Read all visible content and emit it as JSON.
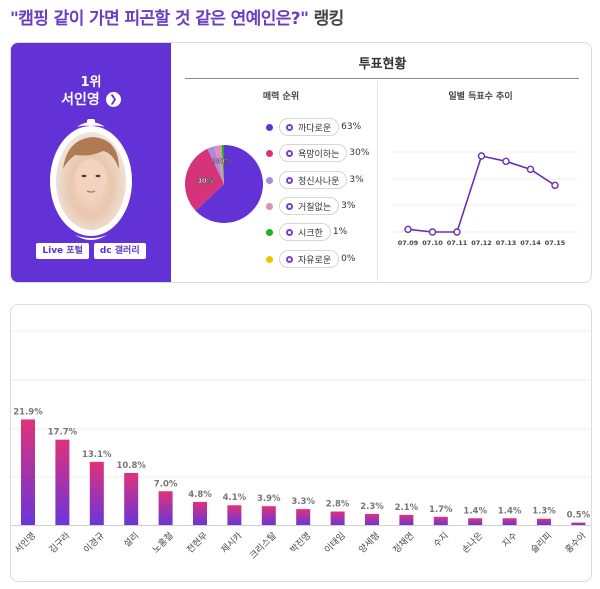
{
  "header": {
    "title_quoted": "\"캠핑 같이 가면 피곤할 것 같은 연예인은?\"",
    "title_suffix": " 랭킹"
  },
  "winner": {
    "rank_label": "1위",
    "name": "서인영",
    "go_icon": "chevron-right-circle-icon",
    "buttons": [
      "Live 포털",
      "dc 갤러리"
    ]
  },
  "vote_status": {
    "title": "투표현황",
    "charm_title": "매력 순위",
    "trend_title": "일별 득표수 추이"
  },
  "colors": {
    "accent": "#6232d6",
    "bar_top": "#e0327a",
    "bar_bottom": "#6a35d9",
    "line": "#6b2fb0"
  },
  "chart_data": [
    {
      "type": "pie",
      "title": "매력 순위",
      "categories": [
        "까다로운",
        "욕망이하는",
        "정신사나운",
        "거칠없는",
        "시크한",
        "자유로운"
      ],
      "values": [
        63,
        30,
        3,
        3,
        1,
        0
      ],
      "labels": [
        "63%",
        "30%",
        "3%",
        "3%",
        "1%",
        "0%"
      ],
      "colors": [
        "#6232d6",
        "#d6347a",
        "#a98be0",
        "#e08fb6",
        "#1bb31b",
        "#f5c000"
      ],
      "slice_labels_shown": [
        "30%",
        "3%",
        "3%",
        "1%"
      ],
      "legend_position": "right"
    },
    {
      "type": "line",
      "title": "일별 득표수 추이",
      "x": [
        "07.09",
        "07.10",
        "07.11",
        "07.12",
        "07.13",
        "07.14",
        "07.15"
      ],
      "values": [
        2,
        0,
        0,
        57,
        53,
        47,
        35
      ],
      "ylabel": "",
      "y_ticks_shown": false,
      "grid": true
    },
    {
      "type": "bar",
      "title": "",
      "categories": [
        "서인영",
        "김구라",
        "이경규",
        "설리",
        "노홍철",
        "전현무",
        "제시카",
        "크리스탈",
        "박진영",
        "이태임",
        "양세형",
        "정채연",
        "수지",
        "손나은",
        "지수",
        "슬리피",
        "홍수아"
      ],
      "values": [
        21.9,
        17.7,
        13.1,
        10.8,
        7.0,
        4.8,
        4.1,
        3.9,
        3.3,
        2.8,
        2.3,
        2.1,
        1.7,
        1.4,
        1.4,
        1.3,
        0.5
      ],
      "labels": [
        "21.9%",
        "17.7%",
        "13.1%",
        "10.8%",
        "7.0%",
        "4.8%",
        "4.1%",
        "3.9%",
        "3.3%",
        "2.8%",
        "2.3%",
        "2.1%",
        "1.7%",
        "1.4%",
        "1.4%",
        "1.3%",
        "0.5%"
      ],
      "xlabel": "",
      "ylabel": "",
      "ylim": [
        0,
        40
      ],
      "grid": true,
      "x_label_rotation": -45
    }
  ]
}
